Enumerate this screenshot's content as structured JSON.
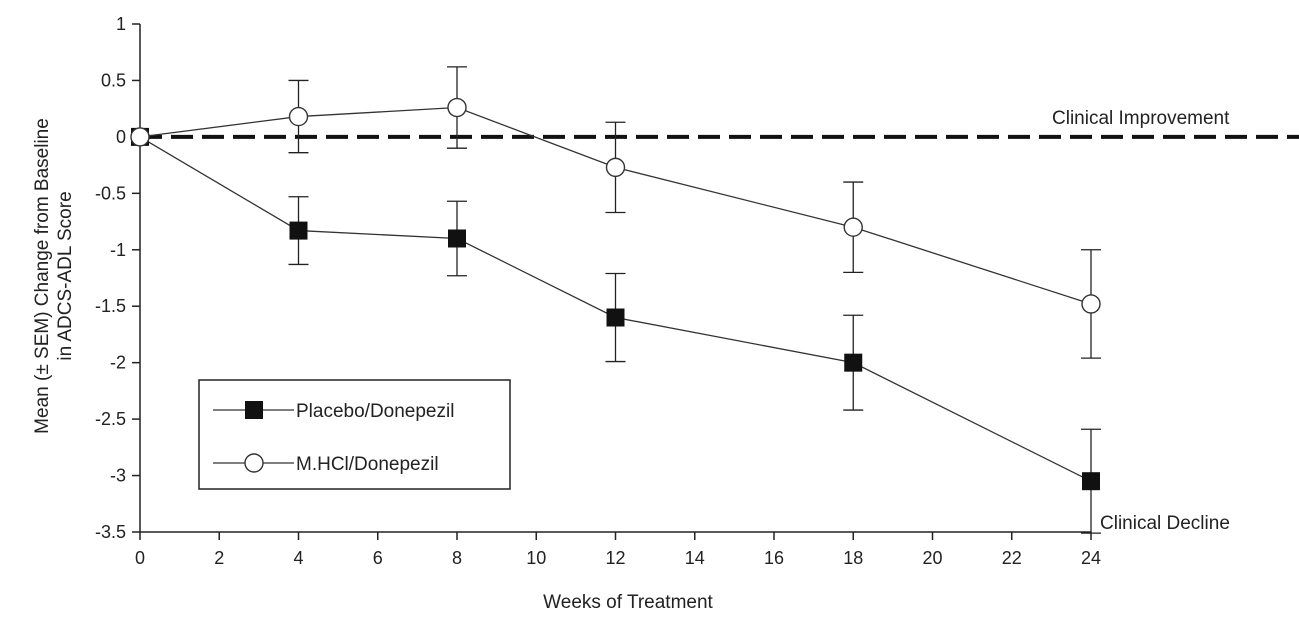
{
  "chart_data": {
    "type": "line",
    "xlabel": "Weeks of Treatment",
    "ylabel_lines": [
      "Mean (± SEM) Change from Baseline",
      "in ADCS-ADL Score"
    ],
    "xlim": [
      0,
      24
    ],
    "ylim": [
      -3.5,
      1
    ],
    "xticks": [
      0,
      2,
      4,
      6,
      8,
      10,
      12,
      14,
      16,
      18,
      20,
      22,
      24
    ],
    "yticks": [
      1,
      0.5,
      0,
      -0.5,
      -1,
      -1.5,
      -2,
      -2.5,
      -3,
      -3.5
    ],
    "reference_line": {
      "y": 0,
      "style": "dashed",
      "label": "Clinical Improvement"
    },
    "annotations": [
      {
        "text": "Clinical Decline"
      }
    ],
    "legend_position": "lower-left",
    "series": [
      {
        "name": "Placebo/Donepezil",
        "marker": "filled-square",
        "x": [
          0,
          4,
          8,
          12,
          18,
          24
        ],
        "y": [
          0,
          -0.83,
          -0.9,
          -1.6,
          -2.0,
          -3.05
        ],
        "err": [
          0,
          0.3,
          0.33,
          0.39,
          0.42,
          0.46
        ]
      },
      {
        "name": "M.HCl/Donepezil",
        "marker": "open-circle",
        "x": [
          0,
          4,
          8,
          12,
          18,
          24
        ],
        "y": [
          0,
          0.18,
          0.26,
          -0.27,
          -0.8,
          -1.48
        ],
        "err": [
          0,
          0.32,
          0.36,
          0.4,
          0.4,
          0.48
        ]
      }
    ]
  }
}
